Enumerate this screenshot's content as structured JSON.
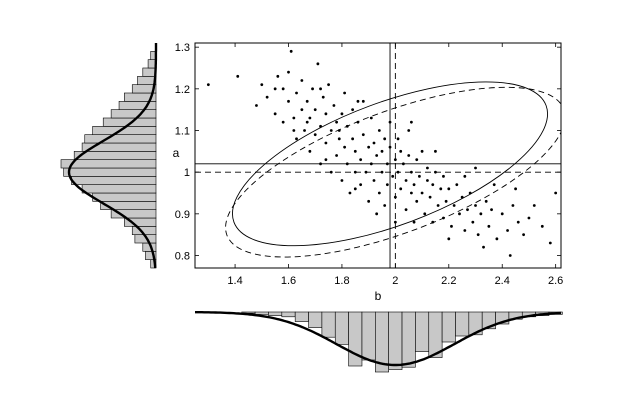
{
  "chart_data": [
    {
      "panel": "main-scatter",
      "type": "scatter",
      "xlabel": "b",
      "ylabel": "a",
      "xlim": [
        1.25,
        2.62
      ],
      "ylim": [
        0.77,
        1.31
      ],
      "xticks": [
        1.4,
        1.6,
        1.8,
        2.0,
        2.2,
        2.4,
        2.6
      ],
      "xtick_labels": [
        "1.4",
        "1.6",
        "1.8",
        "2",
        "2.2",
        "2.4",
        "2.6"
      ],
      "yticks": [
        0.8,
        0.9,
        1.0,
        1.1,
        1.2,
        1.3
      ],
      "ytick_labels": [
        "0.8",
        "0.9",
        "1",
        "1.1",
        "1.2",
        "1.3"
      ],
      "points": [
        [
          1.3,
          1.21
        ],
        [
          1.41,
          1.23
        ],
        [
          1.48,
          1.16
        ],
        [
          1.5,
          1.21
        ],
        [
          1.52,
          1.18
        ],
        [
          1.55,
          1.14
        ],
        [
          1.56,
          1.23
        ],
        [
          1.58,
          1.12
        ],
        [
          1.58,
          1.2
        ],
        [
          1.6,
          1.17
        ],
        [
          1.6,
          1.24
        ],
        [
          1.61,
          1.29
        ],
        [
          1.62,
          1.13
        ],
        [
          1.63,
          1.08
        ],
        [
          1.63,
          1.19
        ],
        [
          1.65,
          1.15
        ],
        [
          1.65,
          1.22
        ],
        [
          1.66,
          1.1
        ],
        [
          1.67,
          1.17
        ],
        [
          1.68,
          1.05
        ],
        [
          1.68,
          1.13
        ],
        [
          1.69,
          1.2
        ],
        [
          1.7,
          1.09
        ],
        [
          1.7,
          1.15
        ],
        [
          1.71,
          1.26
        ],
        [
          1.72,
          1.02
        ],
        [
          1.72,
          1.11
        ],
        [
          1.73,
          1.18
        ],
        [
          1.74,
          1.07
        ],
        [
          1.74,
          1.14
        ],
        [
          1.75,
          1.21
        ],
        [
          1.76,
          1.0
        ],
        [
          1.76,
          1.1
        ],
        [
          1.77,
          1.16
        ],
        [
          1.78,
          1.04
        ],
        [
          1.78,
          1.12
        ],
        [
          1.79,
          1.08
        ],
        [
          1.8,
          0.98
        ],
        [
          1.8,
          1.14
        ],
        [
          1.81,
          1.06
        ],
        [
          1.81,
          1.19
        ],
        [
          1.82,
          1.02
        ],
        [
          1.82,
          1.11
        ],
        [
          1.83,
          0.95
        ],
        [
          1.84,
          1.08
        ],
        [
          1.84,
          1.15
        ],
        [
          1.85,
          1.0
        ],
        [
          1.85,
          1.05
        ],
        [
          1.86,
          1.12
        ],
        [
          1.87,
          0.97
        ],
        [
          1.87,
          1.03
        ],
        [
          1.88,
          1.09
        ],
        [
          1.88,
          1.17
        ],
        [
          1.89,
          1.0
        ],
        [
          1.9,
          0.93
        ],
        [
          1.9,
          1.06
        ],
        [
          1.91,
          1.02
        ],
        [
          1.91,
          1.13
        ],
        [
          1.92,
          0.98
        ],
        [
          1.92,
          1.07
        ],
        [
          1.93,
          1.04
        ],
        [
          1.94,
          0.95
        ],
        [
          1.94,
          1.1
        ],
        [
          1.95,
          1.0
        ],
        [
          1.95,
          1.05
        ],
        [
          1.96,
          0.92
        ],
        [
          1.96,
          1.08
        ],
        [
          1.97,
          1.02
        ],
        [
          1.97,
          0.97
        ],
        [
          1.98,
          1.06
        ],
        [
          1.98,
          1.12
        ],
        [
          1.99,
          0.99
        ],
        [
          2.0,
          1.03
        ],
        [
          2.0,
          0.94
        ],
        [
          2.01,
          1.08
        ],
        [
          2.01,
          1.0
        ],
        [
          2.02,
          0.96
        ],
        [
          2.02,
          1.05
        ],
        [
          2.03,
          1.02
        ],
        [
          2.04,
          0.98
        ],
        [
          2.04,
          0.91
        ],
        [
          2.05,
          1.04
        ],
        [
          2.05,
          1.1
        ],
        [
          2.06,
          0.95
        ],
        [
          2.06,
          1.0
        ],
        [
          2.07,
          0.97
        ],
        [
          2.08,
          1.03
        ],
        [
          2.08,
          0.93
        ],
        [
          2.09,
          0.99
        ],
        [
          2.1,
          0.95
        ],
        [
          2.1,
          1.05
        ],
        [
          2.11,
          0.9
        ],
        [
          2.12,
          0.98
        ],
        [
          2.12,
          1.01
        ],
        [
          2.13,
          0.94
        ],
        [
          2.14,
          0.97
        ],
        [
          2.14,
          0.88
        ],
        [
          2.15,
          1.0
        ],
        [
          2.16,
          0.92
        ],
        [
          2.17,
          0.96
        ],
        [
          2.18,
          0.89
        ],
        [
          2.18,
          0.99
        ],
        [
          2.19,
          0.93
        ],
        [
          2.2,
          0.96
        ],
        [
          2.21,
          0.87
        ],
        [
          2.22,
          0.92
        ],
        [
          2.23,
          0.97
        ],
        [
          2.24,
          0.9
        ],
        [
          2.25,
          0.94
        ],
        [
          2.26,
          0.86
        ],
        [
          2.27,
          0.91
        ],
        [
          2.28,
          0.95
        ],
        [
          2.29,
          0.88
        ],
        [
          2.3,
          0.92
        ],
        [
          2.31,
          0.85
        ],
        [
          2.32,
          0.9
        ],
        [
          2.34,
          0.93
        ],
        [
          2.35,
          0.87
        ],
        [
          2.36,
          0.91
        ],
        [
          2.38,
          0.84
        ],
        [
          2.4,
          0.9
        ],
        [
          2.42,
          0.86
        ],
        [
          2.44,
          0.92
        ],
        [
          2.46,
          0.88
        ],
        [
          2.48,
          0.85
        ],
        [
          2.5,
          0.89
        ],
        [
          2.52,
          0.92
        ],
        [
          2.55,
          0.87
        ],
        [
          2.58,
          0.83
        ],
        [
          2.6,
          0.95
        ],
        [
          1.55,
          1.2
        ],
        [
          1.72,
          1.2
        ],
        [
          1.86,
          1.17
        ],
        [
          2.06,
          1.12
        ],
        [
          2.15,
          1.05
        ],
        [
          2.3,
          1.01
        ],
        [
          2.37,
          0.97
        ],
        [
          2.45,
          0.96
        ],
        [
          1.67,
          1.12
        ],
        [
          1.79,
          1.1
        ],
        [
          1.93,
          0.9
        ],
        [
          2.07,
          0.88
        ],
        [
          2.2,
          0.84
        ],
        [
          2.33,
          0.82
        ],
        [
          2.43,
          0.8
        ],
        [
          1.85,
          0.96
        ],
        [
          2.0,
          0.88
        ],
        [
          1.74,
          1.03
        ],
        [
          1.62,
          1.1
        ],
        [
          2.26,
          0.99
        ]
      ],
      "mean_lines": {
        "solid": {
          "b": 1.98,
          "a": 1.02
        },
        "dashed": {
          "b": 2.0,
          "a": 1.0
        }
      },
      "ellipses": {
        "solid": {
          "center": [
            1.98,
            1.02
          ],
          "rx": 0.63,
          "ry": 0.095,
          "angle_deg": -20.5
        },
        "dashed": {
          "center": [
            2.0,
            1.0
          ],
          "rx": 0.68,
          "ry": 0.094,
          "angle_deg": -20.5
        }
      }
    },
    {
      "panel": "marginal-a",
      "type": "histogram",
      "orientation": "horizontal",
      "ylim": [
        0.77,
        1.31
      ],
      "bins": [
        0.78,
        0.8,
        0.82,
        0.84,
        0.86,
        0.88,
        0.9,
        0.92,
        0.94,
        0.96,
        0.98,
        1.0,
        1.02,
        1.04,
        1.06,
        1.08,
        1.1,
        1.12,
        1.14,
        1.16,
        1.18,
        1.2,
        1.22,
        1.24,
        1.26,
        1.28
      ],
      "counts": [
        2,
        4,
        5,
        8,
        9,
        12,
        17,
        21,
        24,
        28,
        32,
        35,
        36,
        31,
        28,
        27,
        24,
        20,
        17,
        14,
        12,
        9,
        7,
        5,
        3,
        2
      ],
      "density_curve": {
        "mean": 1.0,
        "sd": 0.075
      }
    },
    {
      "panel": "marginal-b",
      "type": "histogram",
      "orientation": "vertical",
      "xlim": [
        1.25,
        2.62
      ],
      "bins": [
        1.3,
        1.35,
        1.4,
        1.45,
        1.5,
        1.55,
        1.6,
        1.65,
        1.7,
        1.75,
        1.8,
        1.85,
        1.9,
        1.95,
        2.0,
        2.05,
        2.1,
        2.15,
        2.2,
        2.25,
        2.3,
        2.35,
        2.4,
        2.45,
        2.5,
        2.55,
        2.6
      ],
      "counts": [
        0,
        0,
        0,
        1,
        2,
        3,
        4,
        8,
        13,
        21,
        27,
        45,
        40,
        50,
        48,
        46,
        33,
        38,
        25,
        20,
        19,
        14,
        10,
        6,
        4,
        3,
        2
      ],
      "density_curve": {
        "mean": 2.0,
        "sd": 0.22
      }
    }
  ]
}
